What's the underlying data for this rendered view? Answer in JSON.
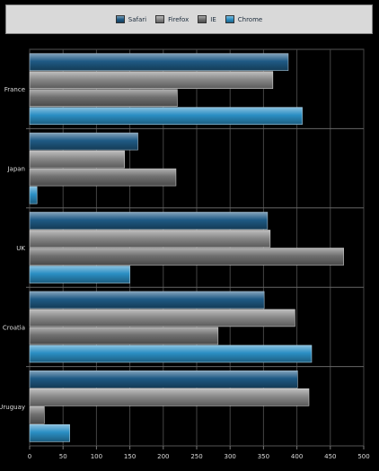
{
  "chart_data": {
    "type": "bar",
    "orientation": "horizontal",
    "categories": [
      "France",
      "Japan",
      "UK",
      "Croatia",
      "Uruguay"
    ],
    "series": [
      {
        "name": "Safari",
        "values": [
          387,
          162,
          356,
          351,
          401
        ],
        "color": "#1f5a85"
      },
      {
        "name": "Firefox",
        "values": [
          364,
          142,
          360,
          397,
          418
        ],
        "color": "#8a8a8a"
      },
      {
        "name": "IE",
        "values": [
          221,
          219,
          470,
          282,
          22
        ],
        "color": "#707070"
      },
      {
        "name": "Chrome",
        "values": [
          408,
          11,
          150,
          422,
          60
        ],
        "color": "#2b8fc4"
      }
    ],
    "xlim": [
      0,
      500
    ],
    "x_ticks": [
      0,
      50,
      100,
      150,
      200,
      250,
      300,
      350,
      400,
      450,
      500
    ],
    "grid": true,
    "legend_position": "top"
  }
}
